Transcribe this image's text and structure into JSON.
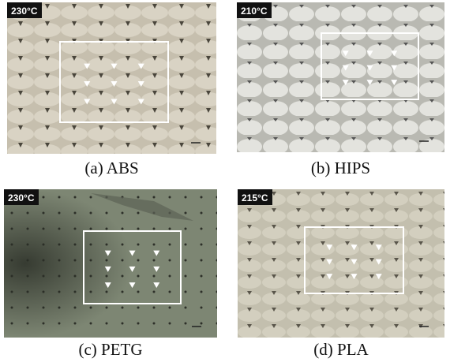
{
  "panels": [
    {
      "temperature": "230°C",
      "caption": "(a) ABS"
    },
    {
      "temperature": "210°C",
      "caption": "(b) HIPS"
    },
    {
      "temperature": "230°C",
      "caption": "(c) PETG"
    },
    {
      "temperature": "215°C",
      "caption": "(d) PLA"
    }
  ]
}
